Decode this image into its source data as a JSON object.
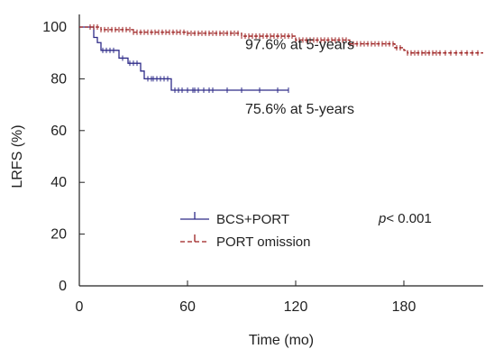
{
  "chart_data": {
    "type": "line",
    "xlabel": "Time (mo)",
    "ylabel": "LRFS (%)",
    "xlim": [
      0,
      224
    ],
    "ylim": [
      0,
      100
    ],
    "x_ticks": [
      0,
      60,
      120,
      180
    ],
    "y_ticks": [
      0,
      20,
      40,
      60,
      80,
      100
    ],
    "grid": false,
    "legend_position": "lower-left",
    "series": [
      {
        "name": "BCS+PORT",
        "color": "#2e2b88",
        "line_style": "solid",
        "steps": [
          [
            0,
            100
          ],
          [
            6,
            100
          ],
          [
            8,
            96
          ],
          [
            10,
            94
          ],
          [
            12,
            91
          ],
          [
            20,
            91
          ],
          [
            22,
            88
          ],
          [
            27,
            86
          ],
          [
            34,
            83
          ],
          [
            36,
            80
          ],
          [
            50,
            80
          ],
          [
            51,
            75.6
          ],
          [
            116,
            75.6
          ]
        ],
        "censor_x": [
          13,
          15,
          17,
          19,
          24,
          28,
          30,
          32,
          38,
          40,
          41,
          43,
          45,
          47,
          49,
          53,
          55,
          57,
          60,
          63,
          64,
          66,
          69,
          72,
          74,
          82,
          90,
          100,
          110,
          116
        ]
      },
      {
        "name": "PORT omission",
        "color": "#9c1f1f",
        "line_style": "dashed",
        "steps": [
          [
            0,
            100
          ],
          [
            5,
            100
          ],
          [
            12,
            99
          ],
          [
            30,
            98
          ],
          [
            60,
            97.6
          ],
          [
            90,
            96.5
          ],
          [
            120,
            95
          ],
          [
            150,
            93.5
          ],
          [
            175,
            92
          ],
          [
            180,
            91
          ],
          [
            182,
            90
          ],
          [
            224,
            90
          ]
        ],
        "censor_x": [
          6,
          8,
          10,
          12,
          14,
          16,
          18,
          20,
          22,
          24,
          26,
          28,
          30,
          32,
          34,
          36,
          38,
          40,
          42,
          44,
          46,
          48,
          50,
          52,
          54,
          56,
          58,
          60,
          62,
          64,
          66,
          68,
          70,
          72,
          74,
          76,
          78,
          80,
          82,
          84,
          86,
          88,
          90,
          92,
          94,
          96,
          98,
          100,
          102,
          104,
          106,
          108,
          110,
          112,
          114,
          116,
          118,
          120,
          122,
          124,
          126,
          128,
          130,
          132,
          134,
          136,
          138,
          140,
          142,
          144,
          146,
          148,
          150,
          152,
          154,
          156,
          158,
          160,
          162,
          164,
          166,
          168,
          170,
          172,
          174,
          176,
          178,
          182,
          184,
          186,
          188,
          190,
          192,
          194,
          196,
          198,
          200,
          203,
          206,
          209,
          212,
          215,
          218,
          221
        ]
      }
    ],
    "annotations": [
      {
        "text": "97.6% at 5-years",
        "x": 92,
        "y": 91.5,
        "color": "#9c1f1f"
      },
      {
        "text": "75.6% at 5-years",
        "x": 92,
        "y": 66.5,
        "color": "#2e2b88"
      }
    ],
    "p_value": {
      "prefix": "p",
      "text": "< 0.001"
    }
  }
}
